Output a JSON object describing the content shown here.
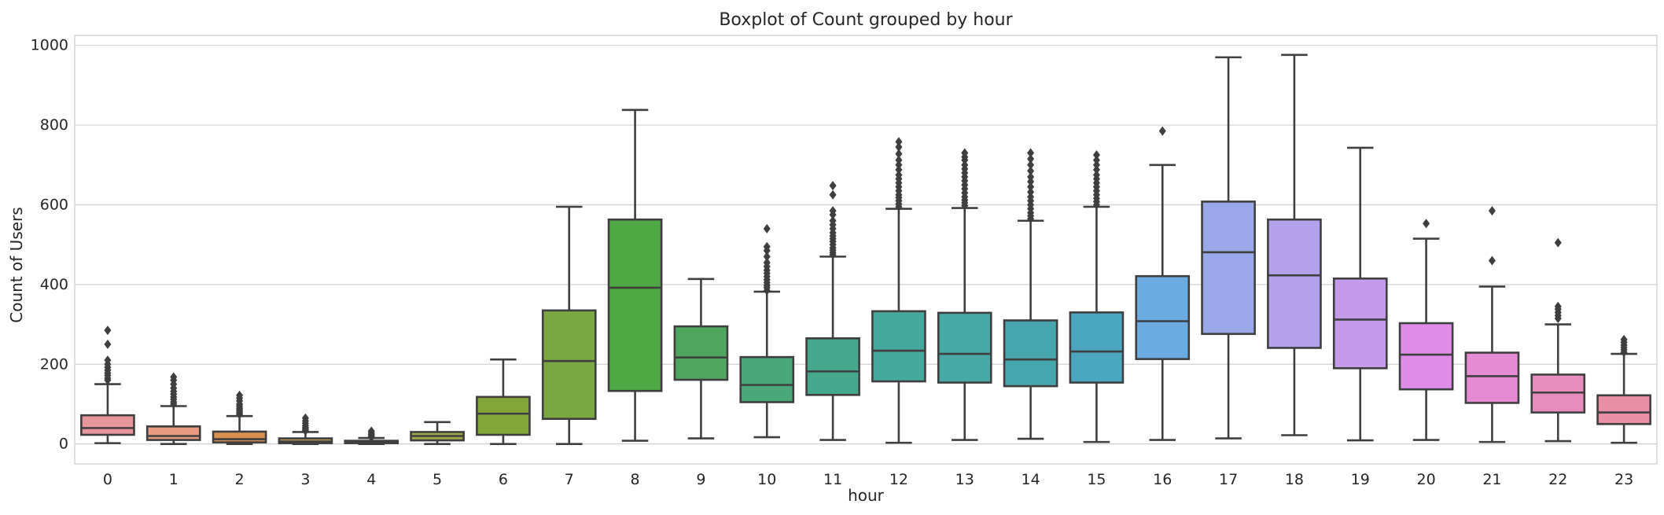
{
  "chart_data": {
    "type": "boxplot",
    "title": "Boxplot of Count grouped by hour",
    "xlabel": "hour",
    "ylabel": "Count of Users",
    "ylim": [
      -50,
      1025
    ],
    "yticks": [
      0,
      200,
      400,
      600,
      800,
      1000
    ],
    "grid": "horizontal",
    "legend": "none",
    "categories": [
      "0",
      "1",
      "2",
      "3",
      "4",
      "5",
      "6",
      "7",
      "8",
      "9",
      "10",
      "11",
      "12",
      "13",
      "14",
      "15",
      "16",
      "17",
      "18",
      "19",
      "20",
      "21",
      "22",
      "23"
    ],
    "boxes": [
      {
        "hour": "0",
        "whislo": 2,
        "q1": 23,
        "med": 40,
        "q3": 72,
        "whishi": 150,
        "color": "#e9959c",
        "fliers": [
          160,
          165,
          172,
          178,
          185,
          192,
          200,
          210,
          250,
          285
        ]
      },
      {
        "hour": "1",
        "whislo": 0,
        "q1": 10,
        "med": 20,
        "q3": 44,
        "whishi": 95,
        "color": "#e89b81",
        "fliers": [
          100,
          105,
          112,
          118,
          125,
          132,
          140,
          150,
          160,
          168
        ]
      },
      {
        "hour": "2",
        "whislo": 0,
        "q1": 4,
        "med": 12,
        "q3": 31,
        "whishi": 70,
        "color": "#d89050",
        "fliers": [
          74,
          78,
          82,
          86,
          90,
          95,
          100,
          108,
          115,
          122
        ]
      },
      {
        "hour": "3",
        "whislo": 0,
        "q1": 2,
        "med": 6,
        "q3": 14,
        "whishi": 30,
        "color": "#bf9b4f",
        "fliers": [
          33,
          37,
          41,
          46,
          52,
          58,
          65
        ]
      },
      {
        "hour": "4",
        "whislo": 0,
        "q1": 2,
        "med": 4,
        "q3": 8,
        "whishi": 15,
        "color": "#ab9b4a",
        "fliers": [
          17,
          20,
          24,
          28,
          32
        ]
      },
      {
        "hour": "5",
        "whislo": 0,
        "q1": 9,
        "med": 20,
        "q3": 30,
        "whishi": 55,
        "color": "#9ea646",
        "fliers": []
      },
      {
        "hour": "6",
        "whislo": 0,
        "q1": 23,
        "med": 76,
        "q3": 118,
        "whishi": 212,
        "color": "#83a63a",
        "fliers": []
      },
      {
        "hour": "7",
        "whislo": 0,
        "q1": 63,
        "med": 208,
        "q3": 335,
        "whishi": 595,
        "color": "#79a842",
        "fliers": []
      },
      {
        "hour": "8",
        "whislo": 8,
        "q1": 133,
        "med": 392,
        "q3": 563,
        "whishi": 838,
        "color": "#4ea844",
        "fliers": []
      },
      {
        "hour": "9",
        "whislo": 14,
        "q1": 161,
        "med": 217,
        "q3": 295,
        "whishi": 414,
        "color": "#4ea65e",
        "fliers": []
      },
      {
        "hour": "10",
        "whislo": 17,
        "q1": 105,
        "med": 148,
        "q3": 218,
        "whishi": 382,
        "color": "#48a879",
        "fliers": [
          385,
          392,
          398,
          405,
          412,
          420,
          428,
          436,
          445,
          455,
          470,
          485,
          495,
          540
        ]
      },
      {
        "hour": "11",
        "whislo": 10,
        "q1": 123,
        "med": 182,
        "q3": 265,
        "whishi": 470,
        "color": "#45a88d",
        "fliers": [
          475,
          480,
          486,
          492,
          500,
          508,
          515,
          522,
          530,
          540,
          550,
          560,
          575,
          585,
          625,
          648
        ]
      },
      {
        "hour": "12",
        "whislo": 3,
        "q1": 157,
        "med": 234,
        "q3": 333,
        "whishi": 590,
        "color": "#46a89d",
        "fliers": [
          595,
          602,
          610,
          618,
          625,
          635,
          645,
          655,
          665,
          675,
          688,
          700,
          712,
          728,
          745,
          758
        ]
      },
      {
        "hour": "13",
        "whislo": 10,
        "q1": 154,
        "med": 226,
        "q3": 329,
        "whishi": 592,
        "color": "#48a8a5",
        "fliers": [
          598,
          605,
          612,
          620,
          630,
          640,
          650,
          660,
          670,
          680,
          690,
          700,
          712,
          720,
          730
        ]
      },
      {
        "hour": "14",
        "whislo": 13,
        "q1": 145,
        "med": 212,
        "q3": 310,
        "whishi": 560,
        "color": "#47a5ad",
        "fliers": [
          565,
          572,
          580,
          590,
          600,
          610,
          620,
          632,
          645,
          658,
          670,
          685,
          700,
          715,
          730
        ]
      },
      {
        "hour": "15",
        "whislo": 5,
        "q1": 154,
        "med": 232,
        "q3": 330,
        "whishi": 595,
        "color": "#4aa7bf",
        "fliers": [
          600,
          608,
          616,
          625,
          635,
          645,
          655,
          665,
          675,
          688,
          700,
          712,
          725
        ]
      },
      {
        "hour": "16",
        "whislo": 10,
        "q1": 213,
        "med": 308,
        "q3": 421,
        "whishi": 700,
        "color": "#6aace2",
        "fliers": [
          785
        ]
      },
      {
        "hour": "17",
        "whislo": 14,
        "q1": 276,
        "med": 481,
        "q3": 608,
        "whishi": 970,
        "color": "#9aa8e9",
        "fliers": []
      },
      {
        "hour": "18",
        "whislo": 22,
        "q1": 241,
        "med": 423,
        "q3": 563,
        "whishi": 976,
        "color": "#b3a2eb",
        "fliers": []
      },
      {
        "hour": "19",
        "whislo": 9,
        "q1": 190,
        "med": 312,
        "q3": 415,
        "whishi": 743,
        "color": "#c69aea",
        "fliers": []
      },
      {
        "hour": "20",
        "whislo": 10,
        "q1": 137,
        "med": 224,
        "q3": 303,
        "whishi": 515,
        "color": "#e08dea",
        "fliers": [
          553
        ]
      },
      {
        "hour": "21",
        "whislo": 5,
        "q1": 103,
        "med": 170,
        "q3": 229,
        "whishi": 395,
        "color": "#e58bd3",
        "fliers": [
          460,
          585
        ]
      },
      {
        "hour": "22",
        "whislo": 7,
        "q1": 79,
        "med": 129,
        "q3": 174,
        "whishi": 300,
        "color": "#e88bbd",
        "fliers": [
          315,
          322,
          330,
          338,
          345,
          505
        ]
      },
      {
        "hour": "23",
        "whislo": 3,
        "q1": 50,
        "med": 79,
        "q3": 122,
        "whishi": 226,
        "color": "#ea8ea6",
        "fliers": [
          230,
          236,
          242,
          248,
          255,
          262
        ]
      }
    ]
  }
}
